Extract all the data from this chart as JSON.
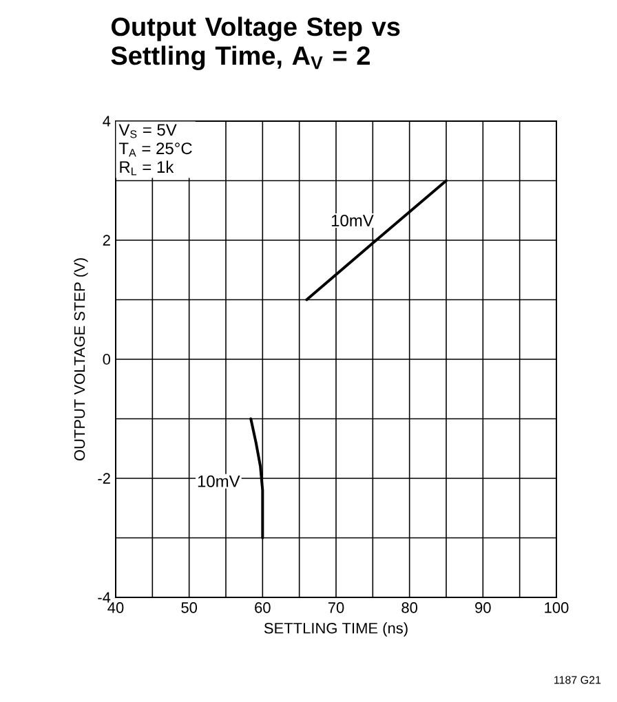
{
  "chart_data": {
    "type": "line",
    "title": "Output Voltage Step vs Settling Time, A$_{V}$ = 2",
    "xlabel": "SETTLING TIME (ns)",
    "ylabel": "OUTPUT VOLTAGE STEP (V)",
    "series": [
      {
        "color": "#000000",
        "x": [
          66,
          75,
          85
        ],
        "values": [
          1,
          1.95,
          3
        ]
      },
      {
        "color": "#000000",
        "x": [
          58.4,
          59.1,
          59.7,
          60,
          60,
          60
        ],
        "values": [
          -1,
          -1.4,
          -1.8,
          -2.2,
          -2.6,
          -3
        ]
      }
    ],
    "xlim": [
      40,
      100
    ],
    "ylim": [
      -4,
      4
    ],
    "xticks": [
      40,
      {
        "value": 45,
        "label": null
      },
      50,
      {
        "value": 55,
        "label": null
      },
      60,
      {
        "value": 65,
        "label": null
      },
      70,
      {
        "value": 75,
        "label": null
      },
      80,
      {
        "value": 85,
        "label": null
      },
      90,
      {
        "value": 95,
        "label": null
      },
      100
    ],
    "yticks": [
      -4,
      {
        "value": -3,
        "label": null
      },
      -2,
      {
        "value": -1,
        "label": null
      },
      0,
      {
        "value": 1,
        "label": null
      },
      2,
      {
        "value": 3,
        "label": null
      },
      4
    ],
    "grid": true,
    "marker": "none",
    "line_style": "solid",
    "annotations": [
      {
        "text": "10mV",
        "x": 72.2,
        "y": 2.33
      },
      {
        "text": "10mV",
        "x": 54,
        "y": -2.05
      },
      "V$_{S}$ = 5V",
      "T$_{A}$ = 25°C",
      "R$_{L}$ = 1k",
      "1187 G21"
    ]
  }
}
